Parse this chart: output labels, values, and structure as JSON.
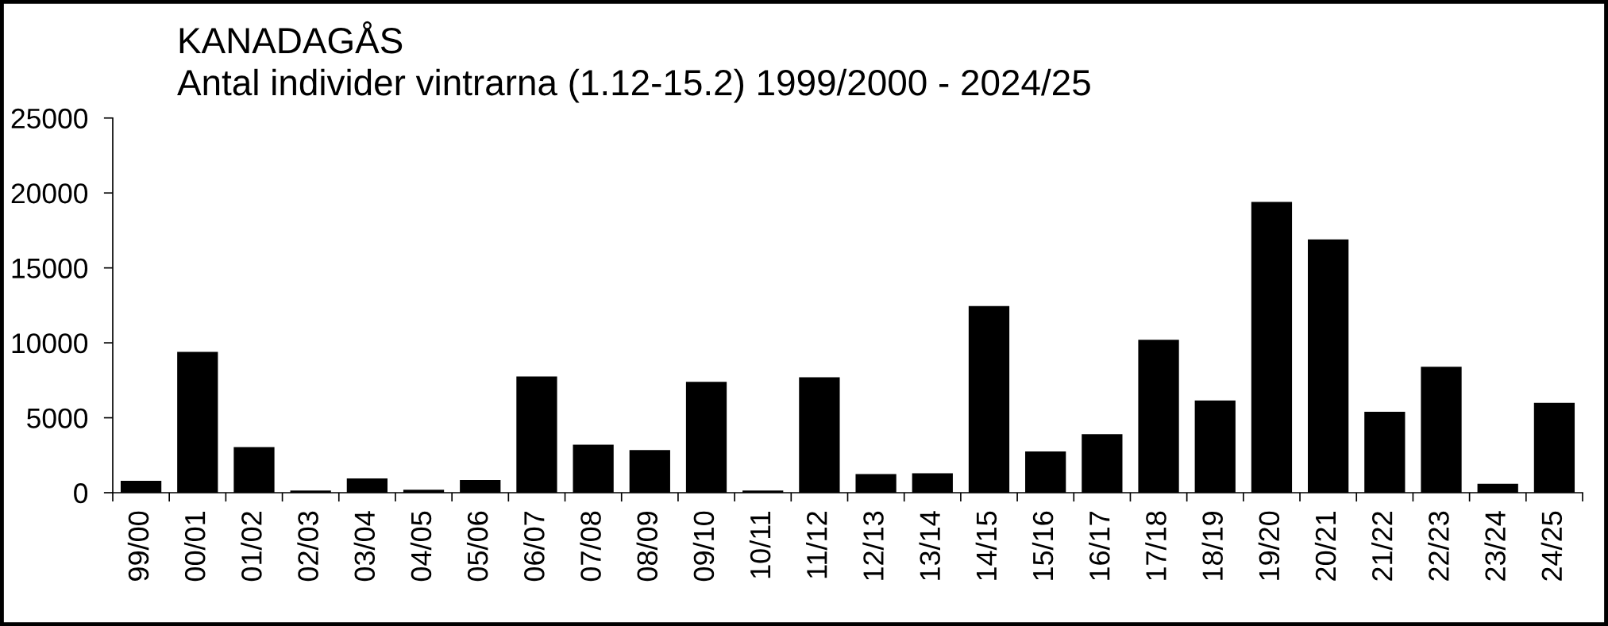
{
  "chart_data": {
    "type": "bar",
    "title": "KANADAGÅS",
    "subtitle": "Antal individer vintrarna (1.12-15.2) 1999/2000 - 2024/25",
    "categories": [
      "99/00",
      "00/01",
      "01/02",
      "02/03",
      "03/04",
      "04/05",
      "05/06",
      "06/07",
      "07/08",
      "08/09",
      "09/10",
      "10/11",
      "11/12",
      "12/13",
      "13/14",
      "14/15",
      "15/16",
      "16/17",
      "17/18",
      "18/19",
      "19/20",
      "20/21",
      "21/22",
      "22/23",
      "23/24",
      "24/25"
    ],
    "values": [
      800,
      9400,
      3050,
      150,
      950,
      200,
      850,
      7750,
      3200,
      2850,
      7400,
      150,
      7700,
      1250,
      1300,
      12450,
      2750,
      3900,
      10200,
      6150,
      19400,
      16900,
      5400,
      8400,
      600,
      6000
    ],
    "color": "#000000",
    "ylim": [
      0,
      25000
    ],
    "yticks": [
      0,
      5000,
      10000,
      15000,
      20000,
      25000
    ]
  }
}
